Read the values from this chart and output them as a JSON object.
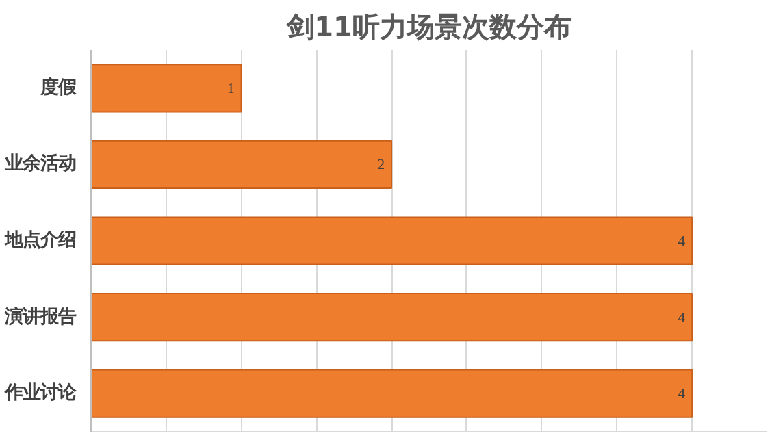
{
  "chart_data": {
    "type": "bar",
    "orientation": "horizontal",
    "title": "剑11听力场景次数分布",
    "categories": [
      "度假",
      "业余活动",
      "地点介绍",
      "演讲报告",
      "作业讨论"
    ],
    "values": [
      1,
      2,
      4,
      4,
      4
    ],
    "color": "#ef7d2e",
    "data_labels": true,
    "xlim": [
      0,
      4.5
    ],
    "xticks": [
      {
        "value": 0,
        "label": null
      },
      {
        "value": 0.5,
        "label": null
      },
      {
        "value": 1,
        "label": null
      },
      {
        "value": 1.5,
        "label": null
      },
      {
        "value": 2,
        "label": null
      },
      {
        "value": 2.5,
        "label": null
      },
      {
        "value": 3,
        "label": null
      },
      {
        "value": 3.5,
        "label": null
      },
      {
        "value": 4,
        "label": null
      }
    ],
    "grid": "x",
    "tick_labels": "y"
  }
}
